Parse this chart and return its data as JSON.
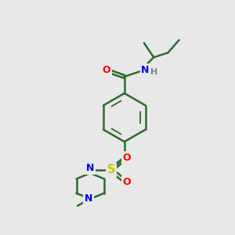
{
  "background_color": "#e8e8e8",
  "bond_color": "#2d6b2d",
  "atom_colors": {
    "O": "#ff0000",
    "N": "#0000ee",
    "S": "#cccc00",
    "H": "#708090",
    "C": "#2d6b2d"
  },
  "figsize": [
    3.0,
    3.0
  ],
  "dpi": 100
}
